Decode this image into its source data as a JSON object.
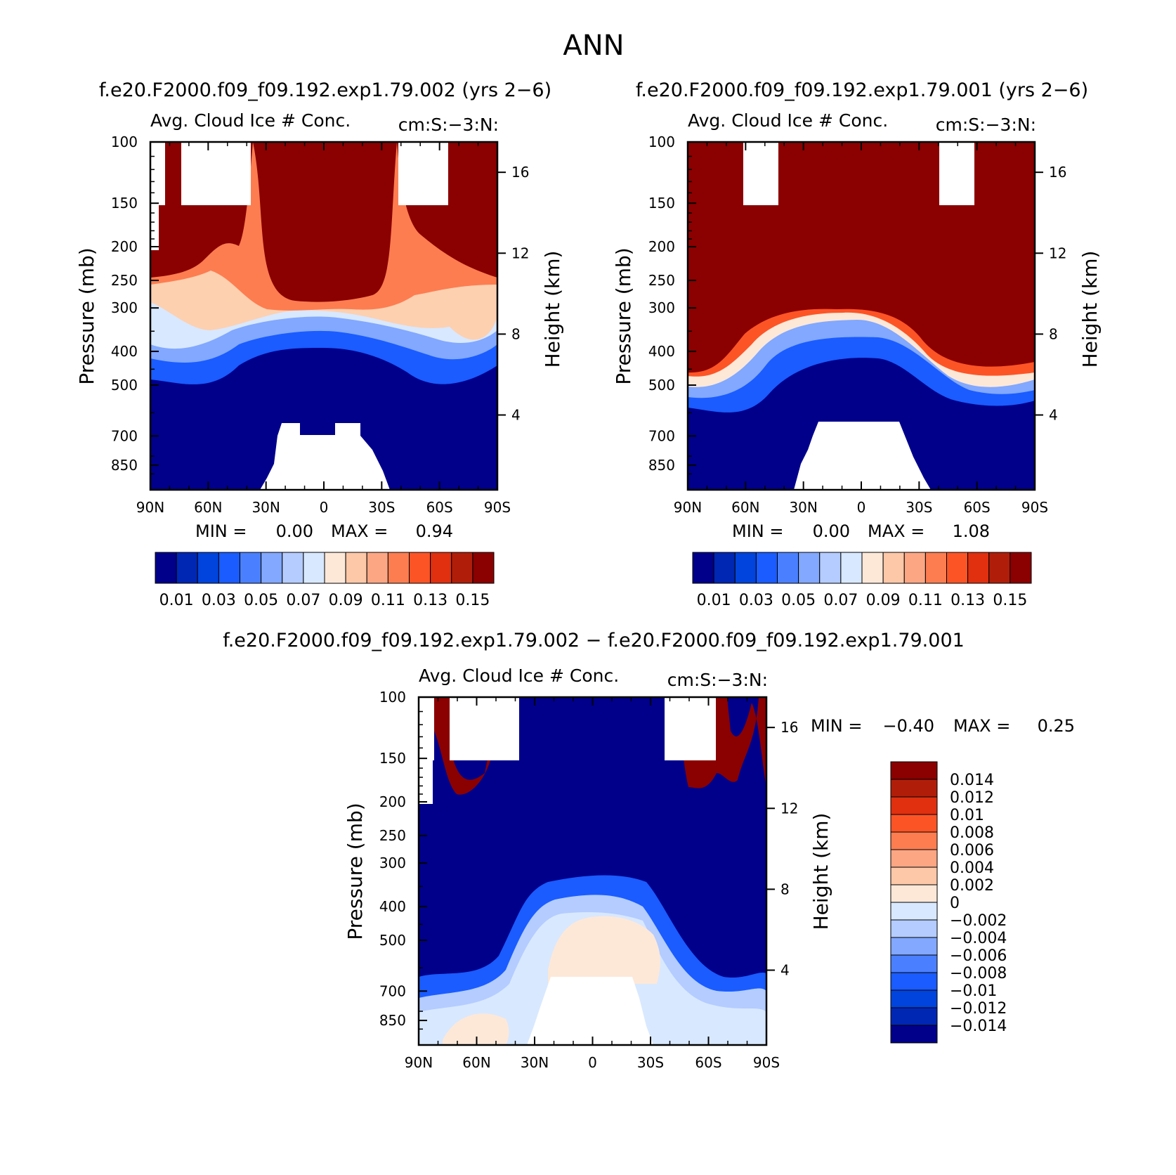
{
  "figure_title": "ANN",
  "panels": [
    {
      "case_title": "f.e20.F2000.f09_f09.192.exp1.79.002 (yrs 2−6)",
      "var_title": "Avg. Cloud Ice # Conc.",
      "units": "cm:S:−3:N:",
      "ylabel_left": "Pressure (mb)",
      "ylabel_right": "Height (km)",
      "min_label": "MIN =",
      "min_value": "0.00",
      "max_label": "MAX =",
      "max_value": "0.94"
    },
    {
      "case_title": "f.e20.F2000.f09_f09.192.exp1.79.001 (yrs 2−6)",
      "var_title": "Avg. Cloud Ice # Conc.",
      "units": "cm:S:−3:N:",
      "ylabel_left": "Pressure (mb)",
      "ylabel_right": "Height (km)",
      "min_label": "MIN =",
      "min_value": "0.00",
      "max_label": "MAX =",
      "max_value": "1.08"
    },
    {
      "case_title": "f.e20.F2000.f09_f09.192.exp1.79.002 − f.e20.F2000.f09_f09.192.exp1.79.001",
      "var_title": "Avg. Cloud Ice # Conc.",
      "units": "cm:S:−3:N:",
      "ylabel_left": "Pressure (mb)",
      "ylabel_right": "Height (km)",
      "min_label": "MIN =",
      "min_value": "−0.40",
      "max_label": "MAX =",
      "max_value": "0.25"
    }
  ],
  "colors": {
    "abs_scale": [
      "#00008b",
      "#0026b4",
      "#0044dd",
      "#1a5cff",
      "#4a80ff",
      "#82a8ff",
      "#b4ccff",
      "#d8e8ff",
      "#fde8d8",
      "#fdc8a8",
      "#fda684",
      "#fd7d50",
      "#fd5426",
      "#e03010",
      "#b01e0a",
      "#8b0000"
    ],
    "diff_scale": [
      "#00008b",
      "#0026b4",
      "#0044dd",
      "#1a5cff",
      "#4a80ff",
      "#82a8ff",
      "#b4ccff",
      "#d8e8ff",
      "#fde8d8",
      "#fdc8a8",
      "#fda684",
      "#fd7d50",
      "#fd5426",
      "#e03010",
      "#b01e0a",
      "#8b0000"
    ]
  },
  "chart_data": [
    {
      "type": "heatmap",
      "title": "Avg. Cloud Ice # Conc.",
      "xlabel": "",
      "ylabel": "Pressure (mb)",
      "ylabel_right": "Height (km)",
      "x_ticks": [
        "90N",
        "60N",
        "30N",
        "0",
        "30S",
        "60S",
        "90S"
      ],
      "y_ticks": [
        "100",
        "150",
        "200",
        "250",
        "300",
        "400",
        "500",
        "700",
        "850"
      ],
      "y_right_ticks": [
        "16",
        "12",
        "8",
        "4"
      ],
      "ylim": [
        1000,
        100
      ],
      "log_y": true,
      "colorbar_labels": [
        "0.01",
        "0.03",
        "0.05",
        "0.07",
        "0.09",
        "0.11",
        "0.13",
        "0.15"
      ],
      "colorbar_levels": [
        0.01,
        0.02,
        0.03,
        0.04,
        0.05,
        0.06,
        0.07,
        0.08,
        0.09,
        0.1,
        0.11,
        0.12,
        0.13,
        0.14,
        0.15
      ],
      "min": 0.0,
      "max": 0.94
    },
    {
      "type": "heatmap",
      "title": "Avg. Cloud Ice # Conc.",
      "xlabel": "",
      "ylabel": "Pressure (mb)",
      "ylabel_right": "Height (km)",
      "x_ticks": [
        "90N",
        "60N",
        "30N",
        "0",
        "30S",
        "60S",
        "90S"
      ],
      "y_ticks": [
        "100",
        "150",
        "200",
        "250",
        "300",
        "400",
        "500",
        "700",
        "850"
      ],
      "y_right_ticks": [
        "16",
        "12",
        "8",
        "4"
      ],
      "ylim": [
        1000,
        100
      ],
      "log_y": true,
      "colorbar_labels": [
        "0.01",
        "0.03",
        "0.05",
        "0.07",
        "0.09",
        "0.11",
        "0.13",
        "0.15"
      ],
      "colorbar_levels": [
        0.01,
        0.02,
        0.03,
        0.04,
        0.05,
        0.06,
        0.07,
        0.08,
        0.09,
        0.1,
        0.11,
        0.12,
        0.13,
        0.14,
        0.15
      ],
      "min": 0.0,
      "max": 1.08
    },
    {
      "type": "heatmap",
      "title": "Avg. Cloud Ice # Conc.",
      "xlabel": "",
      "ylabel": "Pressure (mb)",
      "ylabel_right": "Height (km)",
      "x_ticks": [
        "90N",
        "60N",
        "30N",
        "0",
        "30S",
        "60S",
        "90S"
      ],
      "y_ticks": [
        "100",
        "150",
        "200",
        "250",
        "300",
        "400",
        "500",
        "700",
        "850"
      ],
      "y_right_ticks": [
        "16",
        "12",
        "8",
        "4"
      ],
      "ylim": [
        1000,
        100
      ],
      "log_y": true,
      "colorbar_labels": [
        "0.014",
        "0.012",
        "0.01",
        "0.008",
        "0.006",
        "0.004",
        "0.002",
        "0",
        "−0.002",
        "−0.004",
        "−0.006",
        "−0.008",
        "−0.01",
        "−0.012",
        "−0.014"
      ],
      "colorbar_levels": [
        -0.014,
        -0.012,
        -0.01,
        -0.008,
        -0.006,
        -0.004,
        -0.002,
        0,
        0.002,
        0.004,
        0.006,
        0.008,
        0.01,
        0.012,
        0.014
      ],
      "min": -0.4,
      "max": 0.25
    }
  ]
}
